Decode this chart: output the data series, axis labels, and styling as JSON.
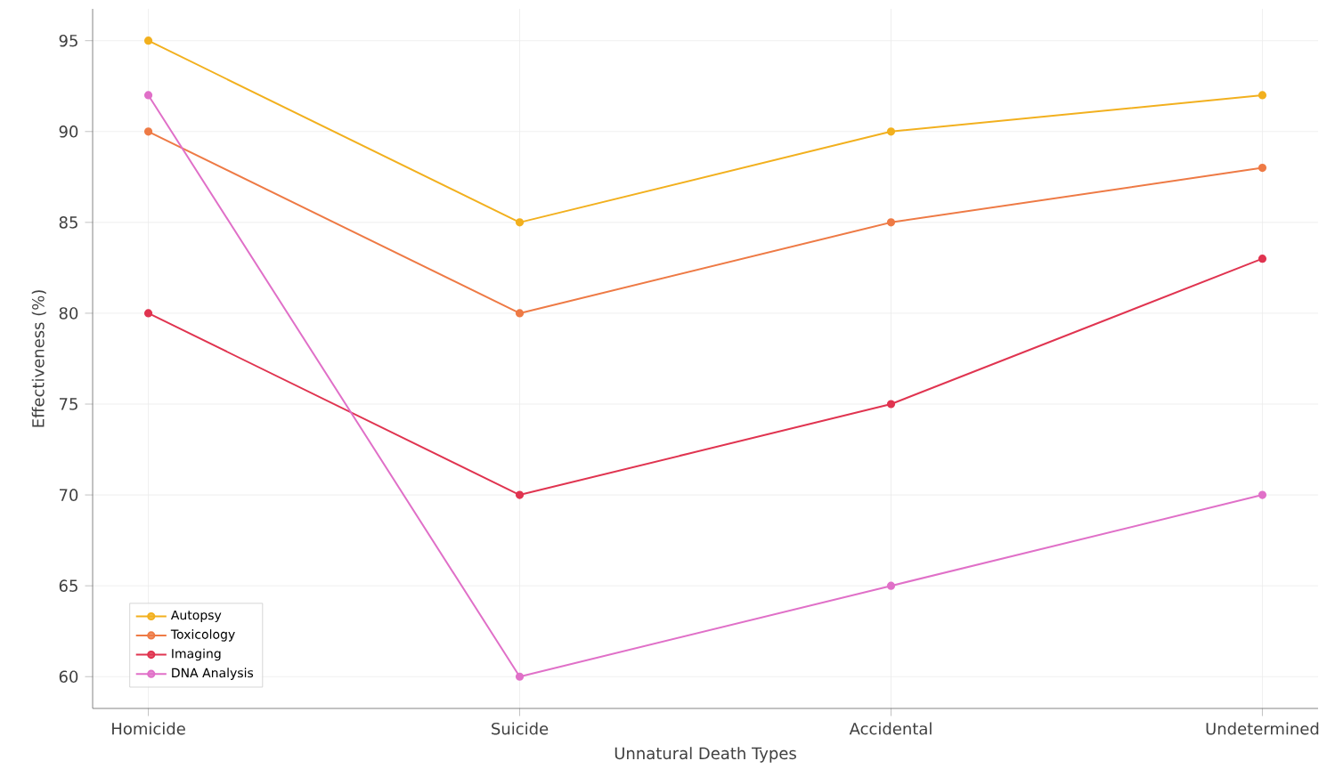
{
  "chart_data": {
    "type": "line",
    "xlabel": "Unnatural Death Types",
    "ylabel": "Effectiveness (%)",
    "categories": [
      "Homicide",
      "Suicide",
      "Accidental",
      "Undetermined"
    ],
    "series": [
      {
        "name": "Autopsy",
        "color": "#f2b01e",
        "values": [
          95,
          85,
          90,
          92
        ]
      },
      {
        "name": "Toxicology",
        "color": "#ee7a45",
        "values": [
          90,
          80,
          85,
          88
        ]
      },
      {
        "name": "Imaging",
        "color": "#e03450",
        "values": [
          80,
          70,
          75,
          83
        ]
      },
      {
        "name": "DNA Analysis",
        "color": "#e070c8",
        "values": [
          92,
          60,
          65,
          70
        ]
      }
    ],
    "ylim": [
      58.25,
      96.75
    ],
    "yticks": [
      60,
      65,
      70,
      75,
      80,
      85,
      90,
      95
    ],
    "grid": true,
    "legend": "bottom left",
    "marker": "circle",
    "line_style": "solid"
  }
}
